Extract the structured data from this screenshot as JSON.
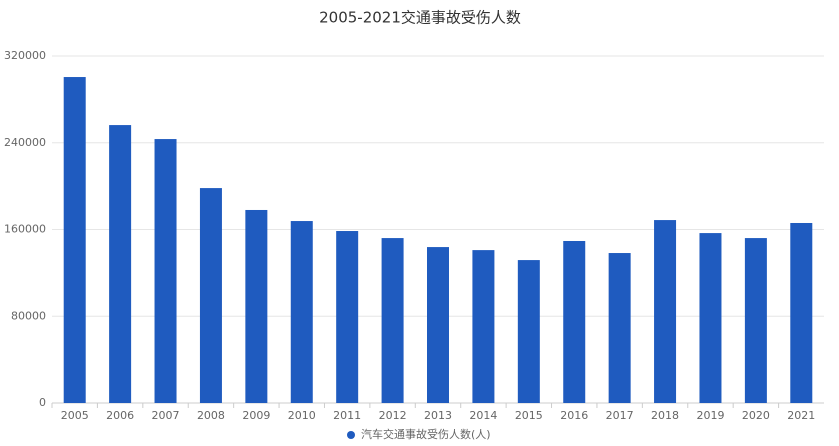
{
  "chart_data": {
    "type": "bar",
    "title": "2005-2021交通事故受伤人数",
    "categories": [
      "2005",
      "2006",
      "2007",
      "2008",
      "2009",
      "2010",
      "2011",
      "2012",
      "2013",
      "2014",
      "2015",
      "2016",
      "2017",
      "2018",
      "2019",
      "2020",
      "2021"
    ],
    "series": [
      {
        "name": "汽车交通事故受伤人数(人)",
        "color": "#1f5bbf",
        "values": [
          300600,
          256300,
          243400,
          198200,
          178000,
          167800,
          158600,
          152100,
          143800,
          141000,
          131800,
          149400,
          138300,
          168700,
          156700,
          152100,
          166000
        ]
      }
    ],
    "ylim": [
      0,
      320000
    ],
    "yticks": [
      0,
      80000,
      160000,
      240000,
      320000
    ],
    "grid": true
  }
}
